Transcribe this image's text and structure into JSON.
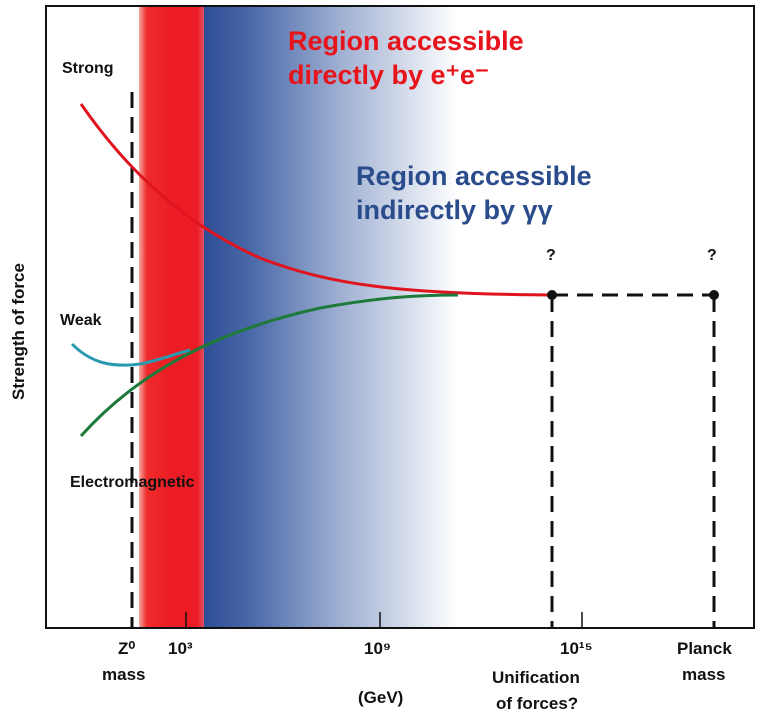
{
  "title": "",
  "y_axis_label": "Strength of force",
  "forces": {
    "strong": "Strong",
    "weak": "Weak",
    "electromagnetic": "Electromagnetic"
  },
  "regions": {
    "direct_line1": "Region accessible",
    "direct_line2": "directly by e⁺e⁻",
    "indirect_line1": "Region accessible",
    "indirect_line2": "indirectly by γγ"
  },
  "x_axis": {
    "z0": "Z⁰",
    "z0_sub": "mass",
    "tick_1e3": "10³",
    "tick_1e9": "10⁹",
    "tick_1e15": "10¹⁵",
    "planck": "Planck",
    "planck_sub": "mass",
    "unif1": "Unification",
    "unif2": "of forces?",
    "unit": "(GeV)"
  },
  "question_marks": [
    "?",
    "?"
  ],
  "colors": {
    "strong": "#e0141e",
    "weak": "#2a9ab0",
    "em": "#1e7a3a",
    "red_region": "#ec1c24",
    "blue_region": "#2e4f96",
    "region_text_red": "#e8141c",
    "region_text_blue": "#2a4c8c"
  }
}
